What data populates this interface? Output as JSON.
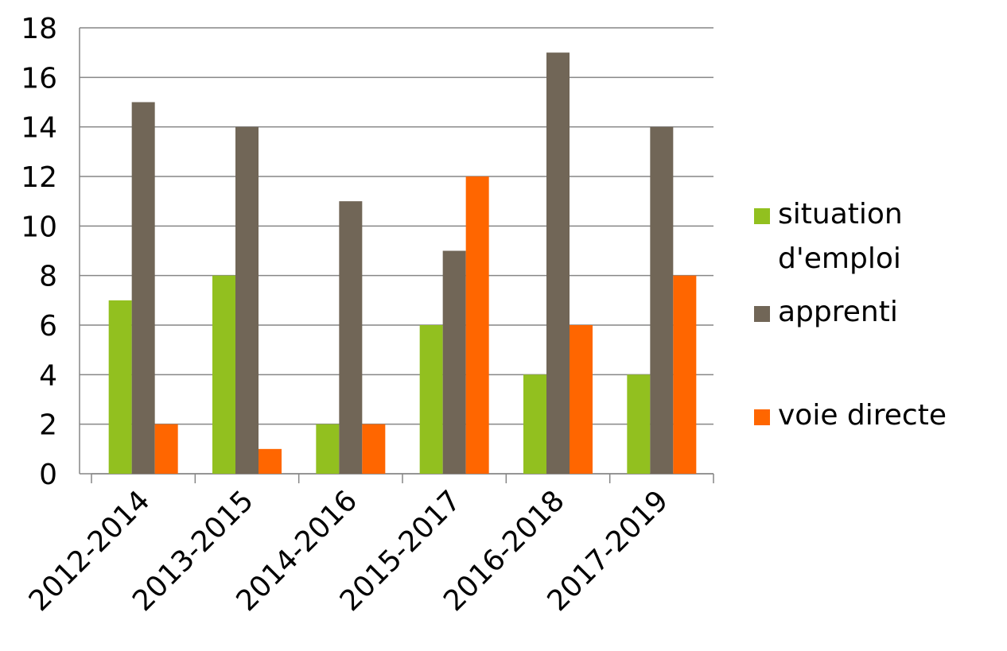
{
  "chart_data": {
    "type": "bar",
    "categories": [
      "2012-2014",
      "2013-2015",
      "2014-2016",
      "2015-2017",
      "2016-2018",
      "2017-2019"
    ],
    "series": [
      {
        "name": "situation d'emploi",
        "color": "#92c01f",
        "values": [
          7,
          8,
          2,
          6,
          4,
          4
        ]
      },
      {
        "name": "apprenti",
        "color": "#716657",
        "values": [
          15,
          14,
          11,
          9,
          17,
          14
        ]
      },
      {
        "name": "voie directe",
        "color": "#ff6600",
        "values": [
          2,
          1,
          2,
          12,
          6,
          8
        ]
      }
    ],
    "ylim": [
      0,
      18
    ],
    "yticks": [
      0,
      2,
      4,
      6,
      8,
      10,
      12,
      14,
      16,
      18
    ],
    "grid": true,
    "legend": "right"
  }
}
